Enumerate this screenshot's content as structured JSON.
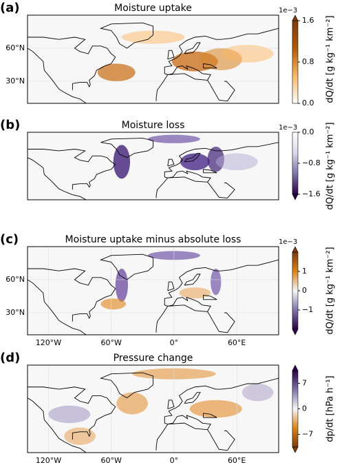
{
  "panels": [
    {
      "label": "(a)",
      "title": "Moisture uptake",
      "exponent": "1e−3",
      "colorbar_label": "dQ/dt [g kg⁻¹ km⁻²]",
      "clim": [
        0,
        1.6
      ],
      "cticks": [
        {
          "value": 0,
          "label": "0.0"
        },
        0.8,
        1.6
      ],
      "cmap": [
        "#ffffff",
        "#fdb863",
        "#b35806",
        "#7f3b08"
      ],
      "extend": "max",
      "xlim": [
        -140,
        100
      ],
      "ylim": [
        10,
        90
      ],
      "xticks": [],
      "yticks": [
        {
          "value": 60,
          "label": "60°N"
        },
        {
          "value": 30,
          "label": "30°N"
        }
      ]
    },
    {
      "label": "(b)",
      "title": "Moisture loss",
      "exponent": "1e−3",
      "colorbar_label": "dQ/dt [g kg⁻¹ km⁻²]",
      "clim": [
        -1.6,
        0
      ],
      "cticks": [
        {
          "value": 0,
          "label": "0.0"
        },
        {
          "value": -0.8,
          "label": "−0.8"
        },
        {
          "value": -1.6,
          "label": "−1.6"
        }
      ],
      "cmap": [
        "#2d004b",
        "#8073ac",
        "#d8daeb",
        "#ffffff"
      ],
      "extend": "min",
      "xlim": [
        -140,
        100
      ],
      "ylim": [
        10,
        90
      ],
      "xticks": [],
      "yticks": []
    },
    {
      "label": "(c)",
      "title": "Moisture uptake minus absolute loss",
      "exponent": "1e−3",
      "colorbar_label": "dQ/dt [g kg⁻¹ km⁻²]",
      "clim": [
        -2,
        2
      ],
      "cticks": [
        1,
        0,
        {
          "value": -1,
          "label": "−1"
        }
      ],
      "cmap": [
        "#2d004b",
        "#8073ac",
        "#f7f7f7",
        "#e08214",
        "#7f3b08"
      ],
      "extend": "both",
      "xlim": [
        -140,
        100
      ],
      "ylim": [
        10,
        90
      ],
      "xticks": [
        {
          "value": -120,
          "label": "120°W"
        },
        {
          "value": -60,
          "label": "60°W"
        },
        {
          "value": 0,
          "label": "0°"
        },
        {
          "value": 60,
          "label": "60°E"
        }
      ],
      "yticks": [
        {
          "value": 60,
          "label": "60°N"
        },
        {
          "value": 30,
          "label": "30°N"
        }
      ]
    },
    {
      "label": "(d)",
      "title": "Pressure change",
      "colorbar_label": "dp/dt [hPa h⁻¹]",
      "clim": [
        -10.5,
        10.5
      ],
      "cticks": [
        7,
        0,
        {
          "value": -7,
          "label": "−7"
        }
      ],
      "cmap": [
        "#7f3b08",
        "#e08214",
        "#f7f7f7",
        "#8073ac",
        "#2d004b"
      ],
      "extend": "both",
      "xlim": [
        -140,
        100
      ],
      "ylim": [
        10,
        90
      ],
      "xticks": [
        {
          "value": -120,
          "label": "120°W"
        },
        {
          "value": -60,
          "label": "60°W"
        },
        {
          "value": 0,
          "label": "0°"
        },
        {
          "value": 60,
          "label": "60°E"
        }
      ],
      "yticks": []
    }
  ]
}
